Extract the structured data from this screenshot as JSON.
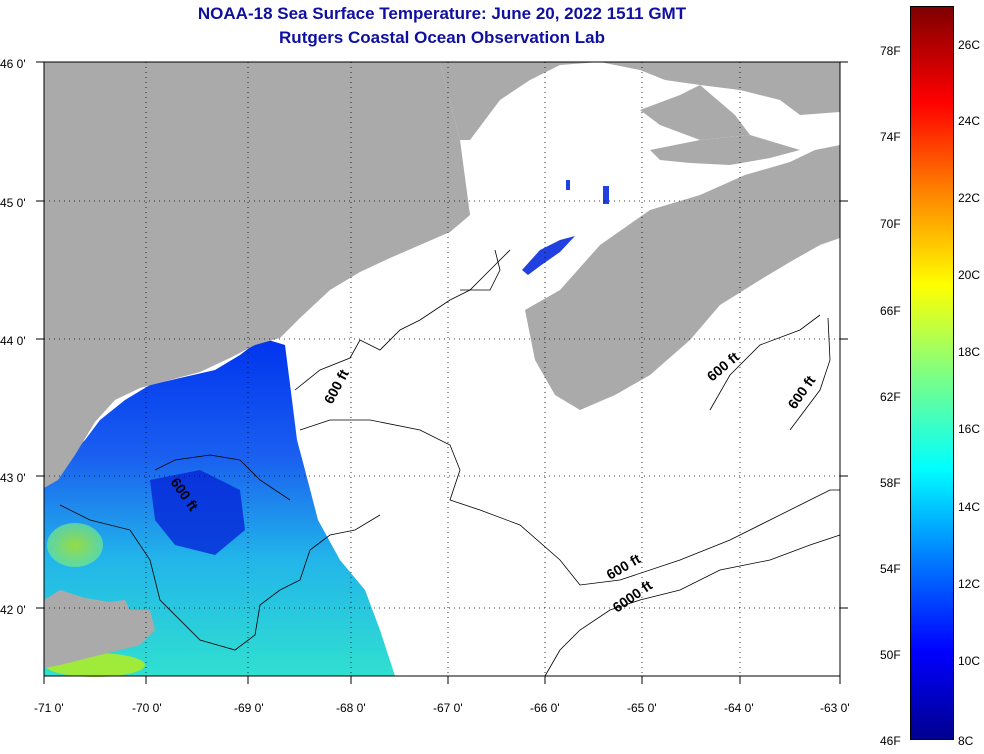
{
  "header": {
    "title": "NOAA-18 Sea Surface Temperature:  June 20, 2022 1511 GMT",
    "subtitle": "Rutgers Coastal Ocean Observation Lab"
  },
  "map": {
    "lat_labels": [
      "46 0'",
      "45 0'",
      "44 0'",
      "43 0'",
      "42 0'"
    ],
    "lon_labels": [
      "-71 0'",
      "-70 0'",
      "-69 0'",
      "-68 0'",
      "-67 0'",
      "-66 0'",
      "-65 0'",
      "-64 0'",
      "-63 0'"
    ],
    "contour_labels": [
      "600 ft",
      "600 ft",
      "600 ft",
      "600 ft",
      "600 ft",
      "6000 ft"
    ],
    "colors": {
      "land": "#aaaaaa",
      "cloud": "#ffffff",
      "grid": "#000000"
    }
  },
  "colorbar": {
    "f_labels": [
      "78F",
      "74F",
      "70F",
      "66F",
      "62F",
      "58F",
      "54F",
      "50F",
      "46F"
    ],
    "c_labels": [
      "26C",
      "24C",
      "22C",
      "20C",
      "18C",
      "16C",
      "14C",
      "12C",
      "10C",
      "8C"
    ],
    "colors": [
      "#7f0000",
      "#ff0000",
      "#ff8000",
      "#ffff00",
      "#80ff80",
      "#00ffff",
      "#0080ff",
      "#0000ff",
      "#00008f"
    ]
  }
}
